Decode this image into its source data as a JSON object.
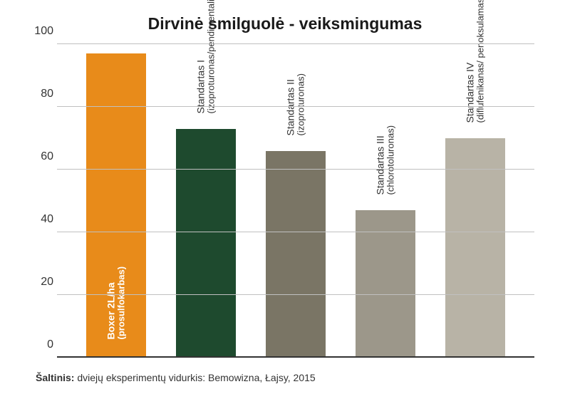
{
  "chart": {
    "type": "bar",
    "title": "Dirvinė smilguolė - veiksmingumas",
    "title_fontsize": 23,
    "title_color": "#1a1a1a",
    "background_color": "#ffffff",
    "grid_color": "#c0c0c0",
    "ylim": [
      0,
      100
    ],
    "ytick_step": 20,
    "yticks": [
      0,
      20,
      40,
      60,
      80,
      100
    ],
    "bar_width_ratio": 0.66,
    "bars": [
      {
        "label_line1": "Boxer 2L/ha",
        "label_line2": "(prosulfokarbas)",
        "value": 97,
        "color": "#e88b1a",
        "label_color": "white",
        "label_bold": true
      },
      {
        "label_line1": "Standartas I",
        "label_line2": "(izoproturonas/pendimentalinas)",
        "value": 73,
        "color": "#1e4a2e",
        "label_color": "dark",
        "label_bold": false
      },
      {
        "label_line1": "Standartas II",
        "label_line2": "(izoproturonas)",
        "value": 66,
        "color": "#7a7565",
        "label_color": "dark",
        "label_bold": false
      },
      {
        "label_line1": "Standartas III",
        "label_line2": "(chlorotoluronas)",
        "value": 47,
        "color": "#9c978a",
        "label_color": "dark",
        "label_bold": false
      },
      {
        "label_line1": "Standartas IV",
        "label_line2": "(diflufenikanas/ penoksulamas/florasulamas)",
        "value": 70,
        "color": "#b8b3a6",
        "label_color": "dark",
        "label_bold": false
      }
    ]
  },
  "source": {
    "label": "Šaltinis:",
    "text": "dviejų eksperimentų vidurkis: Bemowizna, Łajsy, 2015"
  }
}
